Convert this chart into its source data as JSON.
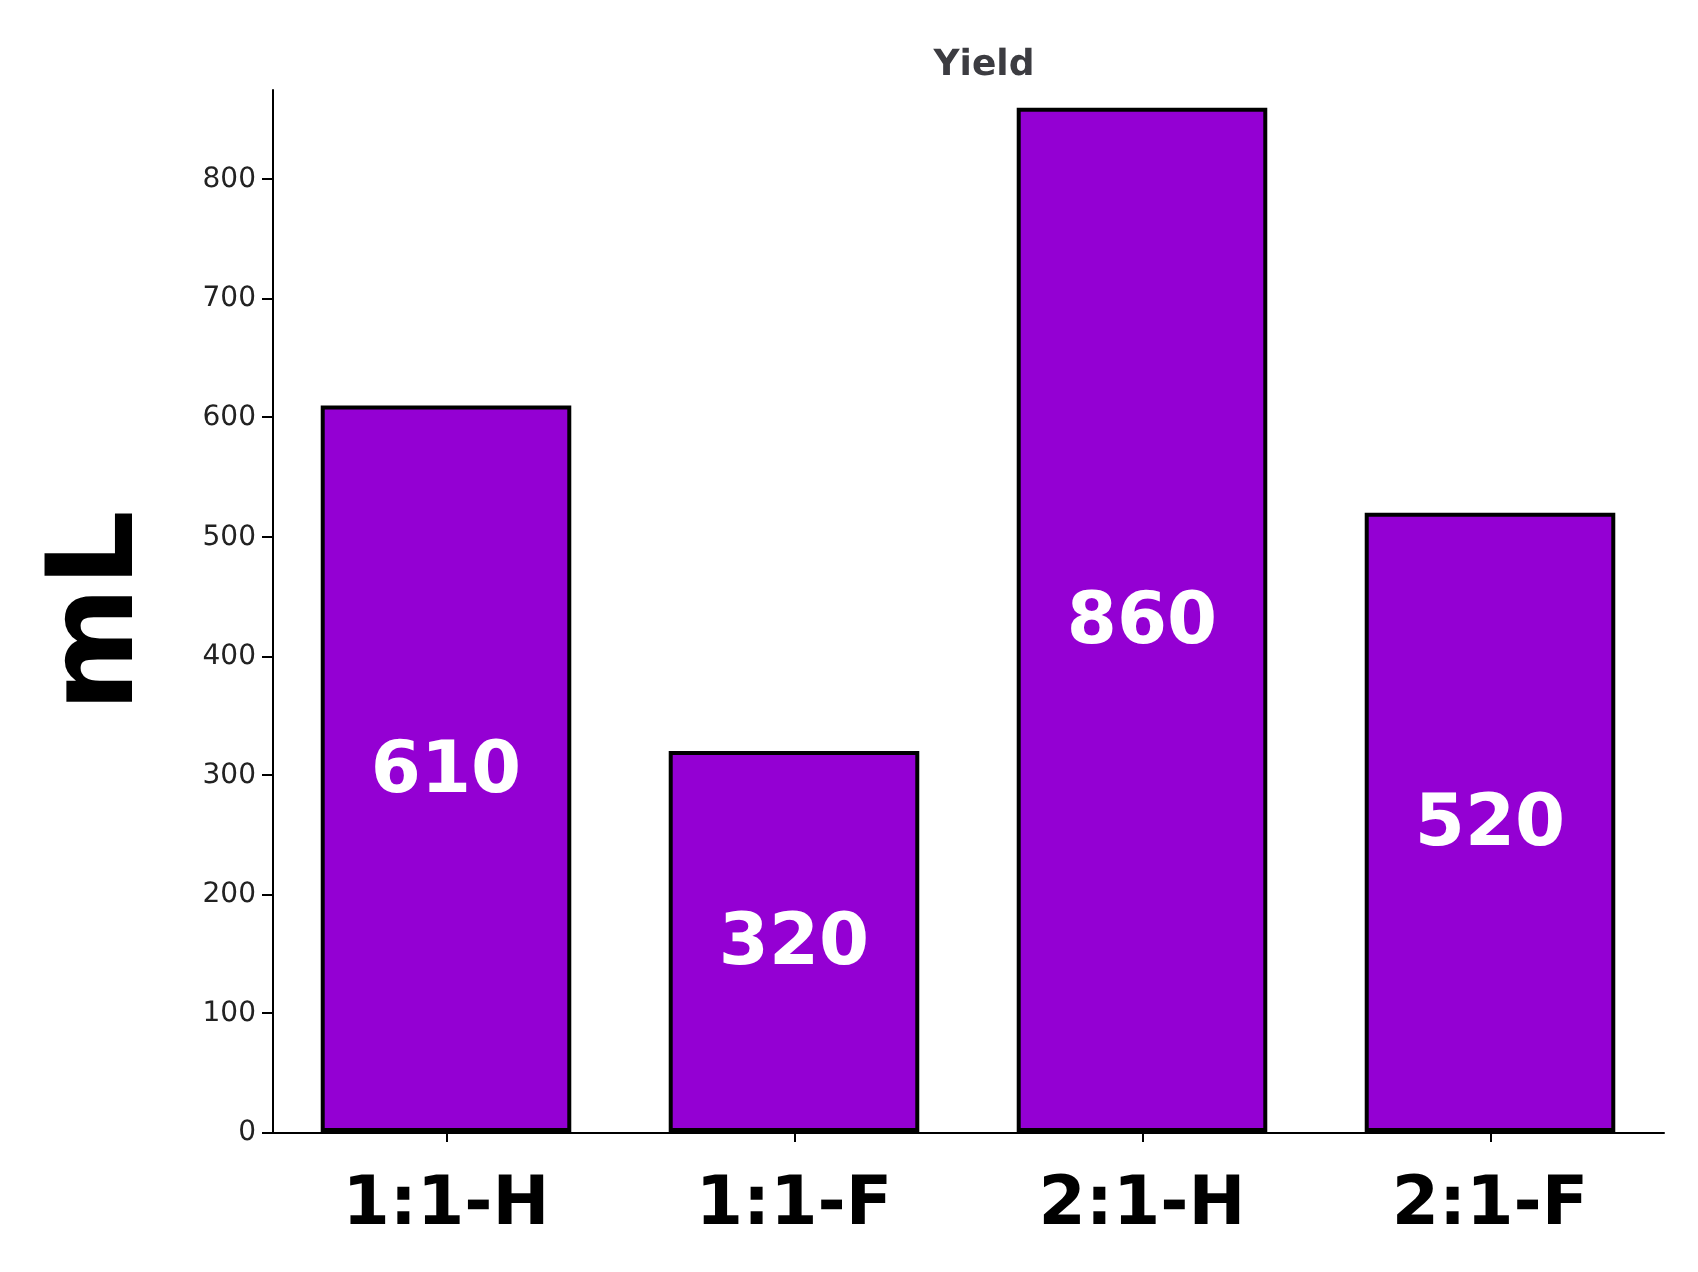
{
  "chart_data": {
    "type": "bar",
    "title": "Yield",
    "ylabel": "mL",
    "categories": [
      "1:1-H",
      "1:1-F",
      "2:1-H",
      "2:1-F"
    ],
    "values": [
      610,
      320,
      860,
      520
    ],
    "color": "#9400d3",
    "ylim": [
      0,
      875
    ],
    "yticks": [
      0,
      100,
      200,
      300,
      400,
      500,
      600,
      700,
      800
    ],
    "grid": false,
    "data_labels": true
  }
}
